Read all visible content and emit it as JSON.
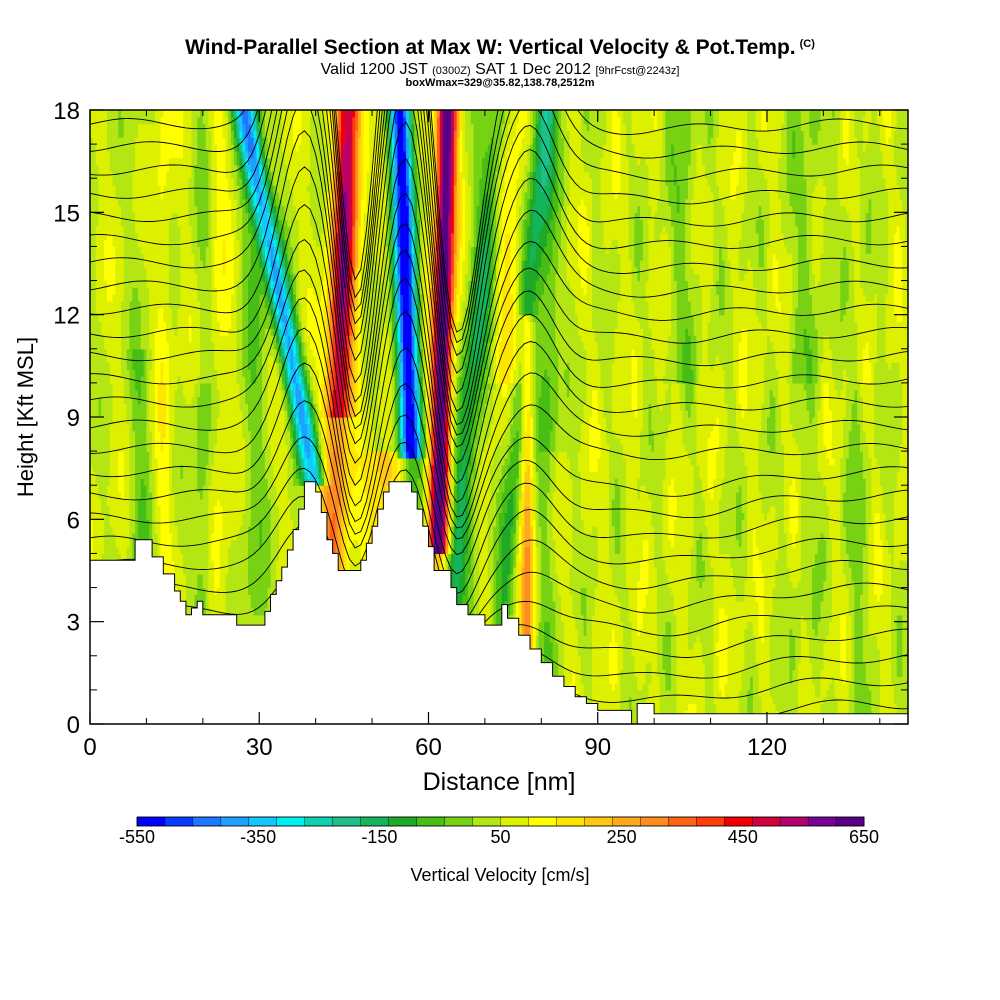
{
  "header": {
    "title_main": "Wind-Parallel Section at Max W: Vertical Velocity & Pot.Temp.",
    "title_copyright": "(C)",
    "subtitle_a": "Valid 1200 JST",
    "subtitle_b": "(0300Z)",
    "subtitle_c": "SAT 1 Dec 2012",
    "subtitle_d": "[9hrFcst@2243z]",
    "box_info": "boxWmax=329@35.82,138.78,2512m"
  },
  "chart_data": {
    "type": "heatmap",
    "title": "Wind-Parallel Section at Max W: Vertical Velocity & Pot.Temp.",
    "xlabel": "Distance [nm]",
    "ylabel": "Height [Kft MSL]",
    "xlim": [
      0,
      145
    ],
    "ylim": [
      0,
      18
    ],
    "x_ticks": [
      "0",
      "30",
      "60",
      "90",
      "120"
    ],
    "x_tick_values": [
      0,
      30,
      60,
      90,
      120
    ],
    "y_ticks": [
      "0",
      "3",
      "6",
      "9",
      "12",
      "15",
      "18"
    ],
    "y_tick_values": [
      0,
      3,
      6,
      9,
      12,
      15,
      18
    ],
    "colorbar": {
      "label": "Vertical Velocity [cm/s]",
      "ticks": [
        "-550",
        "-350",
        "-150",
        "50",
        "250",
        "450",
        "650"
      ],
      "min": -550,
      "max": 650,
      "colors": [
        "#0000ff",
        "#0a3cff",
        "#1e78ff",
        "#1ea0ff",
        "#14c8ff",
        "#00f0f0",
        "#10d0b4",
        "#1cc088",
        "#14b45a",
        "#1eaa28",
        "#46be14",
        "#78d214",
        "#b4e614",
        "#dcf000",
        "#ffff00",
        "#ffe600",
        "#ffc814",
        "#ffaa1e",
        "#ff8c1e",
        "#ff6414",
        "#ff3c0a",
        "#f00000",
        "#d2003c",
        "#b4006e",
        "#780096",
        "#5a0082"
      ]
    },
    "terrain_kft": [
      [
        0,
        4.8
      ],
      [
        8,
        4.8
      ],
      [
        8,
        5.4
      ],
      [
        11,
        5.4
      ],
      [
        11,
        4.9
      ],
      [
        13,
        4.9
      ],
      [
        13,
        4.4
      ],
      [
        15,
        4.4
      ],
      [
        15,
        3.9
      ],
      [
        16,
        3.9
      ],
      [
        16,
        3.6
      ],
      [
        17,
        3.6
      ],
      [
        17,
        3.2
      ],
      [
        18,
        3.2
      ],
      [
        18,
        3.4
      ],
      [
        19,
        3.4
      ],
      [
        19,
        3.6
      ],
      [
        20,
        3.6
      ],
      [
        20,
        3.2
      ],
      [
        26,
        3.2
      ],
      [
        26,
        2.9
      ],
      [
        31,
        2.9
      ],
      [
        31,
        3.3
      ],
      [
        32,
        3.3
      ],
      [
        32,
        3.8
      ],
      [
        33,
        3.8
      ],
      [
        33,
        4.2
      ],
      [
        34,
        4.2
      ],
      [
        34,
        4.6
      ],
      [
        35,
        4.6
      ],
      [
        35,
        5.1
      ],
      [
        36,
        5.1
      ],
      [
        36,
        5.7
      ],
      [
        37,
        5.7
      ],
      [
        37,
        6.3
      ],
      [
        38,
        6.3
      ],
      [
        38,
        7.1
      ],
      [
        40,
        7.1
      ],
      [
        40,
        6.8
      ],
      [
        41,
        6.8
      ],
      [
        41,
        6.2
      ],
      [
        42,
        6.2
      ],
      [
        42,
        5.4
      ],
      [
        43,
        5.4
      ],
      [
        43,
        5.0
      ],
      [
        44,
        5.0
      ],
      [
        44,
        4.5
      ],
      [
        48,
        4.5
      ],
      [
        48,
        4.8
      ],
      [
        49,
        4.8
      ],
      [
        49,
        5.3
      ],
      [
        50,
        5.3
      ],
      [
        50,
        5.8
      ],
      [
        51,
        5.8
      ],
      [
        51,
        6.3
      ],
      [
        52,
        6.3
      ],
      [
        52,
        6.8
      ],
      [
        53,
        6.8
      ],
      [
        53,
        7.1
      ],
      [
        57,
        7.1
      ],
      [
        57,
        6.8
      ],
      [
        58,
        6.8
      ],
      [
        58,
        6.3
      ],
      [
        59,
        6.3
      ],
      [
        59,
        5.8
      ],
      [
        60,
        5.8
      ],
      [
        60,
        5.2
      ],
      [
        61,
        5.2
      ],
      [
        61,
        4.5
      ],
      [
        64,
        4.5
      ],
      [
        64,
        4.0
      ],
      [
        65,
        4.0
      ],
      [
        65,
        3.5
      ],
      [
        67,
        3.5
      ],
      [
        67,
        3.2
      ],
      [
        70,
        3.2
      ],
      [
        70,
        2.9
      ],
      [
        73,
        2.9
      ],
      [
        73,
        3.5
      ],
      [
        74,
        3.5
      ],
      [
        74,
        3.1
      ],
      [
        76,
        3.1
      ],
      [
        76,
        2.6
      ],
      [
        78,
        2.6
      ],
      [
        78,
        2.2
      ],
      [
        80,
        2.2
      ],
      [
        80,
        1.8
      ],
      [
        82,
        1.8
      ],
      [
        82,
        1.4
      ],
      [
        84,
        1.4
      ],
      [
        84,
        1.1
      ],
      [
        86,
        1.1
      ],
      [
        86,
        0.8
      ],
      [
        88,
        0.8
      ],
      [
        88,
        0.6
      ],
      [
        90,
        0.6
      ],
      [
        90,
        0.4
      ],
      [
        96,
        0.4
      ],
      [
        96,
        0.0
      ],
      [
        97,
        0.0
      ],
      [
        97,
        0.6
      ],
      [
        100,
        0.6
      ],
      [
        100,
        0.3
      ],
      [
        145,
        0.3
      ]
    ],
    "contours": "potential temperature isentropes (unlabeled values)"
  }
}
